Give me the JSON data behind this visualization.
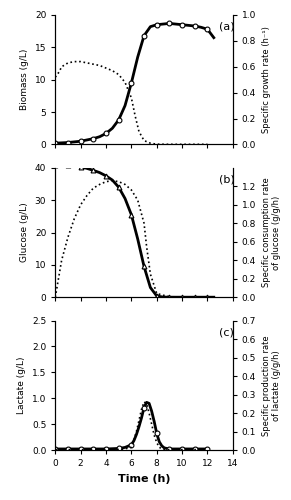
{
  "panel_a": {
    "label": "(a)",
    "biomass_time": [
      0,
      0.5,
      1,
      1.5,
      2,
      2.5,
      3,
      3.5,
      4,
      4.5,
      5,
      5.5,
      6,
      6.5,
      7,
      7.5,
      8,
      8.5,
      9,
      9.5,
      10,
      10.5,
      11,
      11.5,
      12,
      12.5
    ],
    "biomass_vals": [
      0.2,
      0.25,
      0.3,
      0.4,
      0.5,
      0.7,
      0.9,
      1.2,
      1.7,
      2.5,
      3.8,
      6.0,
      9.5,
      13.5,
      16.8,
      18.2,
      18.5,
      18.6,
      18.7,
      18.6,
      18.5,
      18.4,
      18.3,
      18.1,
      17.8,
      16.5
    ],
    "biomass_points_time": [
      0,
      1,
      2,
      3,
      4,
      5,
      6,
      7,
      8,
      9,
      10,
      11,
      12
    ],
    "biomass_points_vals": [
      0.2,
      0.3,
      0.5,
      0.9,
      1.7,
      3.8,
      9.5,
      16.8,
      18.5,
      18.7,
      18.5,
      18.3,
      17.8
    ],
    "biomass_marker": "o",
    "growth_rate_time": [
      0,
      0.3,
      0.5,
      1,
      1.5,
      2,
      2.5,
      3,
      3.5,
      4,
      4.5,
      5,
      5.5,
      6,
      6.3,
      6.6,
      7.0,
      7.5,
      8,
      9,
      10,
      12
    ],
    "growth_rate_vals": [
      0.52,
      0.56,
      0.6,
      0.63,
      0.64,
      0.64,
      0.63,
      0.62,
      0.61,
      0.59,
      0.57,
      0.54,
      0.48,
      0.36,
      0.22,
      0.1,
      0.03,
      0.01,
      0.002,
      0.001,
      0.001,
      0.001
    ],
    "ylim_left": [
      0,
      20
    ],
    "ylim_right": [
      0,
      1
    ],
    "ylabel_left": "Biomass (g/L)",
    "ylabel_right": "Specific growth rate (h⁻¹)",
    "yticks_left": [
      0,
      5,
      10,
      15,
      20
    ],
    "yticks_right": [
      0,
      0.2,
      0.4,
      0.6,
      0.8,
      1.0
    ]
  },
  "panel_b": {
    "label": "(b)",
    "glucose_time": [
      0,
      0.5,
      1,
      1.5,
      2,
      2.5,
      3,
      3.5,
      4,
      4.5,
      5,
      5.5,
      6,
      6.5,
      7,
      7.5,
      8,
      8.5,
      9,
      9.5,
      10,
      10.5,
      11,
      11.5,
      12,
      12.5
    ],
    "glucose_vals": [
      41,
      40.9,
      40.8,
      40.6,
      40.3,
      39.8,
      39.2,
      38.5,
      37.5,
      36.2,
      34.0,
      30.5,
      25.5,
      18.0,
      9.5,
      3.0,
      0.4,
      0.05,
      0.02,
      0.01,
      0.01,
      0.01,
      0.01,
      0.01,
      0.01,
      0.01
    ],
    "glucose_points_time": [
      0,
      1,
      2,
      3,
      4,
      5,
      6,
      7,
      8,
      9,
      10,
      11,
      12
    ],
    "glucose_points_vals": [
      41,
      40.8,
      40.3,
      39.2,
      37.5,
      34.0,
      25.5,
      9.5,
      0.4,
      0.02,
      0.01,
      0.01,
      0.01
    ],
    "glucose_marker": "^",
    "cons_rate_time": [
      0,
      0.5,
      1,
      1.5,
      2,
      2.5,
      3,
      3.5,
      4,
      4.5,
      5,
      5.5,
      6,
      6.5,
      7,
      7.2,
      7.5,
      8,
      9,
      10,
      12
    ],
    "cons_rate_vals": [
      0.0,
      0.4,
      0.65,
      0.85,
      1.0,
      1.1,
      1.18,
      1.22,
      1.25,
      1.26,
      1.25,
      1.22,
      1.16,
      1.05,
      0.8,
      0.55,
      0.25,
      0.04,
      0.005,
      0.001,
      0.001
    ],
    "ylim_left": [
      0,
      40
    ],
    "ylim_right": [
      0,
      1.4
    ],
    "ylabel_left": "Glucose (g/L)",
    "ylabel_right": "Specific consumption rate\nof glucose (g/g/h)",
    "yticks_left": [
      0,
      10,
      20,
      30,
      40
    ],
    "yticks_right": [
      0,
      0.2,
      0.4,
      0.6,
      0.8,
      1.0,
      1.2
    ]
  },
  "panel_c": {
    "label": "(c)",
    "lactate_time": [
      0,
      1,
      2,
      3,
      4,
      5,
      5.5,
      6.0,
      6.2,
      6.4,
      6.6,
      6.8,
      7.0,
      7.2,
      7.4,
      7.6,
      7.8,
      8.0,
      8.2,
      8.4,
      8.6,
      8.8,
      9.0,
      9.5,
      10,
      11,
      12
    ],
    "lactate_vals": [
      0.02,
      0.02,
      0.02,
      0.02,
      0.02,
      0.03,
      0.05,
      0.1,
      0.18,
      0.3,
      0.45,
      0.62,
      0.82,
      0.92,
      0.9,
      0.75,
      0.55,
      0.32,
      0.16,
      0.08,
      0.04,
      0.03,
      0.02,
      0.02,
      0.02,
      0.02,
      0.02
    ],
    "lactate_points_time": [
      0,
      1,
      2,
      3,
      4,
      5,
      6,
      7,
      8,
      9,
      10,
      11,
      12
    ],
    "lactate_points_vals": [
      0.02,
      0.02,
      0.02,
      0.02,
      0.02,
      0.03,
      0.1,
      0.82,
      0.32,
      0.02,
      0.02,
      0.02,
      0.02
    ],
    "lactate_marker": "o",
    "prod_rate_time": [
      0,
      1,
      2,
      3,
      4,
      5,
      5.5,
      6.0,
      6.2,
      6.4,
      6.6,
      6.8,
      7.0,
      7.2,
      7.4,
      7.6,
      7.8,
      8.0,
      8.2,
      8.4,
      8.6,
      9.0,
      10,
      12
    ],
    "prod_rate_vals": [
      0.002,
      0.002,
      0.002,
      0.002,
      0.002,
      0.003,
      0.006,
      0.015,
      0.055,
      0.1,
      0.16,
      0.22,
      0.26,
      0.25,
      0.2,
      0.14,
      0.08,
      0.04,
      0.015,
      0.006,
      0.003,
      0.002,
      0.002,
      0.002
    ],
    "ylim_left": [
      0,
      2.5
    ],
    "ylim_right": [
      0,
      0.7
    ],
    "ylabel_left": "Lactate (g/L)",
    "ylabel_right": "Specific production rate\nof lactate (g/g/h)",
    "yticks_left": [
      0,
      0.5,
      1.0,
      1.5,
      2.0,
      2.5
    ],
    "yticks_right": [
      0,
      0.1,
      0.2,
      0.3,
      0.4,
      0.5,
      0.6,
      0.7
    ]
  },
  "xlabel": "Time (h)",
  "xlim": [
    0,
    14
  ],
  "xticks": [
    0,
    2,
    4,
    6,
    8,
    10,
    12,
    14
  ],
  "solid_color": "black",
  "dotted_color": "black",
  "point_color": "white",
  "point_edge_color": "black"
}
